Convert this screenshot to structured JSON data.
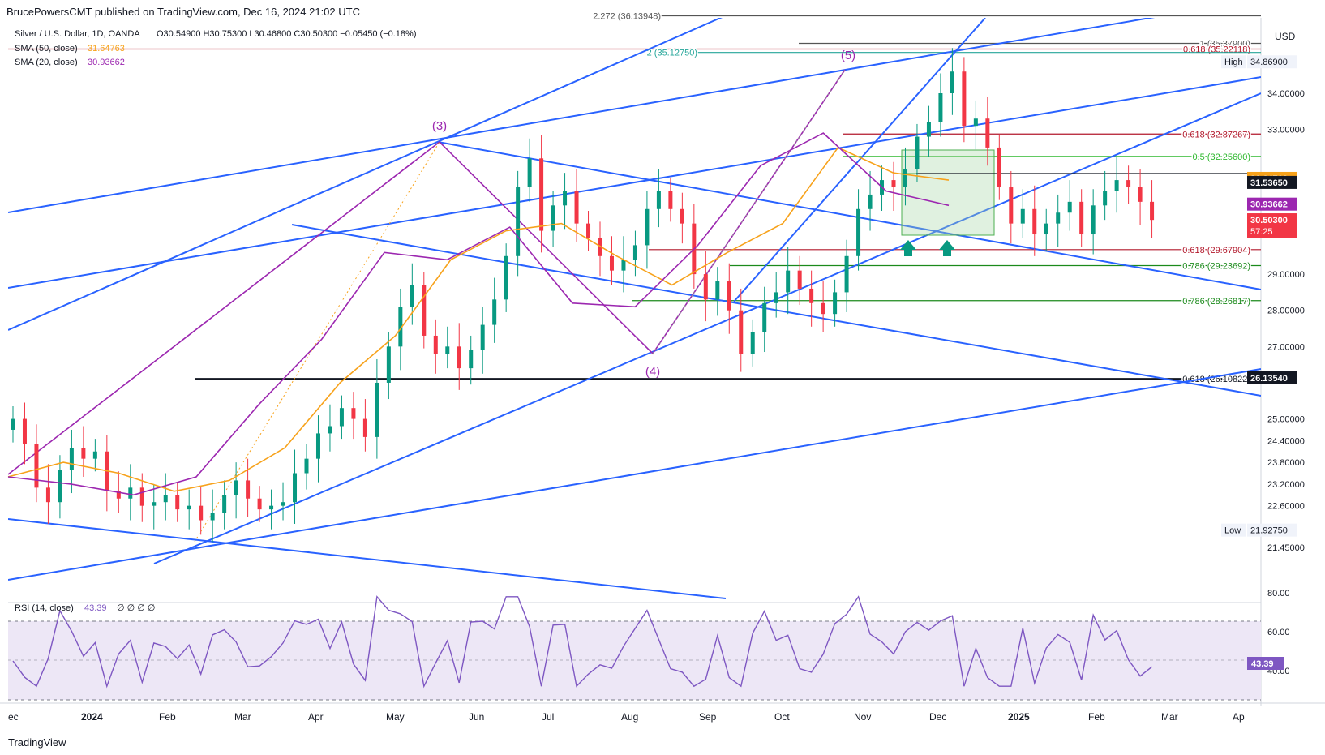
{
  "header": {
    "publisher": "BrucePowersCMT published on TradingView.com, Dec 16, 2024 21:02 UTC"
  },
  "legend": {
    "symbol": "Silver / U.S. Dollar, 1D, OANDA",
    "ohlc": "O30.54900  H30.75300  L30.46800  C30.50300  −0.05450 (−0.18%)",
    "sma50_label": "SMA (50, close)",
    "sma50_value": "31.64763",
    "sma20_label": "SMA (20, close)",
    "sma20_value": "30.93662"
  },
  "currency": "USD",
  "rsi": {
    "label": "RSI (14, close)",
    "value": "43.39",
    "extra": "∅ ∅ ∅ ∅",
    "ticks": [
      "80.00",
      "60.00",
      "40.00"
    ],
    "current": "43.39"
  },
  "footer": {
    "brand": "TradingView"
  },
  "colors": {
    "up": "#089981",
    "down": "#f23645",
    "sma50": "#f7a21b",
    "sma20": "#9c27b0",
    "trend": "#2962ff",
    "wave": "#9c27b0",
    "fib_red": "#b2182b",
    "fib_green": "#1b8a1b",
    "rsi_line": "#7e57c2",
    "rsi_band": "#ede7f6"
  },
  "chart_data": {
    "type": "candlestick",
    "title": "Silver / U.S. Dollar, 1D, OANDA",
    "y_axis": {
      "ticks": [
        "34.00000",
        "33.00000",
        "29.00000",
        "28.00000",
        "27.00000",
        "25.00000",
        "24.40000",
        "23.80000",
        "23.20000",
        "22.60000",
        "21.45000"
      ],
      "range": [
        21.0,
        36.5
      ]
    },
    "x_axis": {
      "ticks": [
        "ec",
        "2024",
        "Feb",
        "Mar",
        "Apr",
        "May",
        "Jun",
        "Jul",
        "Aug",
        "Sep",
        "Oct",
        "Nov",
        "Dec",
        "2025",
        "Feb",
        "Mar",
        "Ap"
      ]
    },
    "price_tags": [
      {
        "label": "High",
        "value": "34.86900"
      },
      {
        "value": "31.64763"
      },
      {
        "value": "31.53650"
      },
      {
        "value": "30.93662"
      },
      {
        "value": "30.50300",
        "sub": "57:25"
      },
      {
        "value": "26.13540"
      },
      {
        "label": "Low",
        "value": "21.92750"
      }
    ],
    "fib_levels": [
      {
        "text": "2.272 (36.13948)",
        "price": 36.139
      },
      {
        "text": "1 (35.37900)",
        "price": 35.379
      },
      {
        "text": "0.618 (35.22118)",
        "price": 35.221
      },
      {
        "text": "2 (35.12750)",
        "price": 35.1275
      },
      {
        "text": "0.618 (32.87267)",
        "price": 32.873
      },
      {
        "text": "0.5 (32.25600)",
        "price": 32.256
      },
      {
        "text": "0.618 (29.67904)",
        "price": 29.679
      },
      {
        "text": "0.786 (29.23692)",
        "price": 29.237
      },
      {
        "text": "0.786 (28.26817)",
        "price": 28.268
      },
      {
        "text": "0.618 (26.10822)",
        "price": 26.108
      }
    ],
    "wave_labels": [
      "(3)",
      "(4)",
      "(5)"
    ],
    "closes": [
      25.0,
      24.3,
      23.1,
      22.7,
      23.6,
      24.2,
      23.9,
      24.1,
      23.0,
      22.8,
      23.1,
      22.6,
      22.7,
      22.9,
      22.5,
      22.6,
      22.2,
      22.4,
      22.9,
      23.3,
      22.8,
      22.5,
      22.6,
      22.7,
      23.5,
      23.9,
      24.6,
      24.8,
      25.3,
      25.0,
      24.5,
      26.0,
      27.0,
      28.1,
      28.7,
      27.3,
      26.8,
      27.0,
      26.4,
      26.9,
      27.6,
      28.3,
      29.5,
      31.4,
      32.2,
      30.2,
      30.9,
      31.3,
      30.4,
      30.0,
      29.5,
      29.1,
      29.4,
      29.8,
      30.8,
      31.3,
      30.8,
      30.4,
      29.0,
      28.3,
      28.8,
      28.0,
      26.8,
      27.4,
      28.2,
      28.5,
      29.1,
      28.6,
      28.2,
      27.9,
      28.5,
      29.5,
      30.8,
      31.2,
      31.6,
      31.4,
      31.9,
      32.8,
      33.2,
      34.0,
      34.6,
      33.1,
      33.3,
      32.5,
      31.4,
      30.4,
      30.8,
      30.1,
      30.4,
      30.7,
      31.0,
      30.1,
      30.9,
      31.3,
      31.6,
      31.4,
      31.0,
      30.5
    ],
    "sma50_samples": [
      23.4,
      23.8,
      23.5,
      23.0,
      23.3,
      24.2,
      26.0,
      27.3,
      29.4,
      30.2,
      30.4,
      29.5,
      28.7,
      29.6,
      30.4,
      32.5,
      31.8,
      31.6
    ],
    "sma20_samples": [
      23.4,
      23.2,
      22.9,
      23.4,
      25.4,
      27.2,
      29.6,
      29.4,
      30.3,
      28.2,
      28.1,
      29.8,
      32.0,
      32.9,
      31.3,
      30.9
    ]
  }
}
